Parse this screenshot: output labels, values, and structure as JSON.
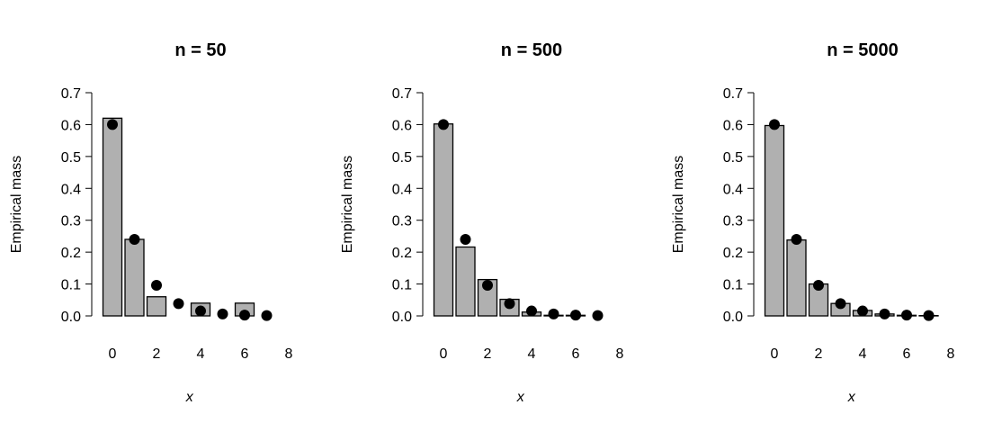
{
  "chart_data": [
    {
      "type": "bar",
      "title": "n = 50",
      "xlabel": "x",
      "ylabel": "Empirical mass",
      "ylim": [
        0,
        0.7
      ],
      "yticks": [
        "0.0",
        "0.1",
        "0.2",
        "0.3",
        "0.4",
        "0.5",
        "0.6",
        "0.7"
      ],
      "xticks": [
        "0",
        "2",
        "4",
        "6",
        "8"
      ],
      "categories": [
        0,
        1,
        2,
        3,
        4,
        5,
        6,
        7,
        8
      ],
      "values": [
        0.62,
        0.24,
        0.06,
        0,
        0.04,
        0,
        0.04,
        0,
        0
      ],
      "points": {
        "x": [
          0,
          1,
          2,
          3,
          4,
          5,
          6,
          7
        ],
        "y": [
          0.6,
          0.24,
          0.096,
          0.0384,
          0.01536,
          0.006144,
          0.0024576,
          0.00098304
        ]
      },
      "grid": false
    },
    {
      "type": "bar",
      "title": "n = 500",
      "xlabel": "x",
      "ylabel": "Empirical mass",
      "ylim": [
        0,
        0.7
      ],
      "yticks": [
        "0.0",
        "0.1",
        "0.2",
        "0.3",
        "0.4",
        "0.5",
        "0.6",
        "0.7"
      ],
      "xticks": [
        "0",
        "2",
        "4",
        "6",
        "8"
      ],
      "categories": [
        0,
        1,
        2,
        3,
        4,
        5,
        6,
        7,
        8
      ],
      "values": [
        0.602,
        0.216,
        0.114,
        0.052,
        0.012,
        0.002,
        0.002,
        0,
        0
      ],
      "points": {
        "x": [
          0,
          1,
          2,
          3,
          4,
          5,
          6,
          7
        ],
        "y": [
          0.6,
          0.24,
          0.096,
          0.0384,
          0.01536,
          0.006144,
          0.0024576,
          0.00098304
        ]
      },
      "grid": false
    },
    {
      "type": "bar",
      "title": "n = 5000",
      "xlabel": "x",
      "ylabel": "Empirical mass",
      "ylim": [
        0,
        0.7
      ],
      "yticks": [
        "0.0",
        "0.1",
        "0.2",
        "0.3",
        "0.4",
        "0.5",
        "0.6",
        "0.7"
      ],
      "xticks": [
        "0",
        "2",
        "4",
        "6",
        "8"
      ],
      "categories": [
        0,
        1,
        2,
        3,
        4,
        5,
        6,
        7,
        8
      ],
      "values": [
        0.597,
        0.238,
        0.1,
        0.039,
        0.017,
        0.006,
        0.002,
        0.001,
        0
      ],
      "points": {
        "x": [
          0,
          1,
          2,
          3,
          4,
          5,
          6,
          7
        ],
        "y": [
          0.6,
          0.24,
          0.096,
          0.0384,
          0.01536,
          0.006144,
          0.0024576,
          0.00098304
        ]
      },
      "grid": false
    }
  ],
  "colors": {
    "bar_fill": "#b0b0b0",
    "bar_stroke": "#000000",
    "point": "#000000"
  }
}
